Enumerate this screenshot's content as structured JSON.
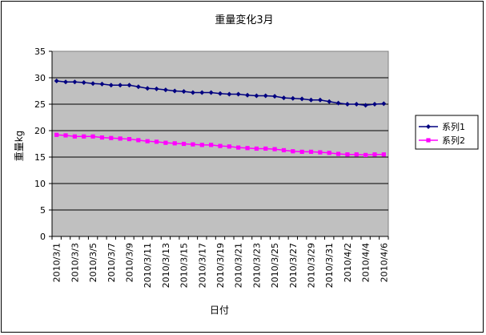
{
  "chart_data": {
    "type": "line",
    "title": "重量変化3月",
    "xlabel": "日付",
    "ylabel": "重量kg",
    "ylim": [
      0,
      35
    ],
    "yticks": [
      "0",
      "5",
      "10",
      "15",
      "20",
      "25",
      "30",
      "35"
    ],
    "grid": true,
    "legend_position": "right",
    "categories": [
      "2010/3/1",
      "2010/3/2",
      "2010/3/3",
      "2010/3/4",
      "2010/3/5",
      "2010/3/6",
      "2010/3/7",
      "2010/3/8",
      "2010/3/9",
      "2010/3/10",
      "2010/3/11",
      "2010/3/12",
      "2010/3/13",
      "2010/3/14",
      "2010/3/15",
      "2010/3/16",
      "2010/3/17",
      "2010/3/18",
      "2010/3/19",
      "2010/3/20",
      "2010/3/21",
      "2010/3/22",
      "2010/3/23",
      "2010/3/24",
      "2010/3/25",
      "2010/3/26",
      "2010/3/27",
      "2010/3/28",
      "2010/3/29",
      "2010/3/30",
      "2010/3/31",
      "2010/4/1",
      "2010/4/2",
      "2010/4/3",
      "2010/4/4",
      "2010/4/5",
      "2010/4/6"
    ],
    "shown_xticks": [
      "2010/3/1",
      "2010/3/3",
      "2010/3/5",
      "2010/3/7",
      "2010/3/9",
      "2010/3/11",
      "2010/3/13",
      "2010/3/15",
      "2010/3/17",
      "2010/3/19",
      "2010/3/21",
      "2010/3/23",
      "2010/3/25",
      "2010/3/27",
      "2010/3/29",
      "2010/3/31",
      "2010/4/2",
      "2010/4/4",
      "2010/4/6"
    ],
    "series": [
      {
        "name": "系列1",
        "color": "#000080",
        "marker": "diamond",
        "values": [
          29.4,
          29.2,
          29.2,
          29.1,
          28.9,
          28.8,
          28.6,
          28.6,
          28.6,
          28.3,
          28.0,
          27.9,
          27.7,
          27.5,
          27.4,
          27.2,
          27.2,
          27.2,
          27.0,
          26.9,
          26.9,
          26.7,
          26.6,
          26.6,
          26.5,
          26.2,
          26.1,
          26.0,
          25.8,
          25.8,
          25.5,
          25.2,
          25.0,
          25.0,
          24.8,
          25.0,
          25.1
        ]
      },
      {
        "name": "系列2",
        "color": "#FF00FF",
        "marker": "square",
        "values": [
          19.2,
          19.1,
          18.9,
          18.9,
          18.9,
          18.7,
          18.6,
          18.5,
          18.4,
          18.2,
          18.0,
          17.9,
          17.7,
          17.6,
          17.5,
          17.4,
          17.3,
          17.3,
          17.1,
          17.0,
          16.8,
          16.7,
          16.6,
          16.6,
          16.5,
          16.3,
          16.1,
          16.0,
          16.0,
          15.9,
          15.8,
          15.6,
          15.5,
          15.5,
          15.4,
          15.5,
          15.5
        ]
      }
    ],
    "plot_background": "#C0C0C0"
  }
}
